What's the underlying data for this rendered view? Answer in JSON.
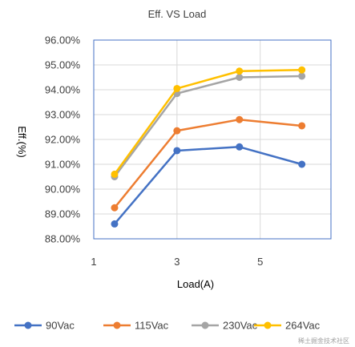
{
  "chart_data": {
    "type": "line",
    "title": "Eff. VS Load",
    "xlabel": "Load(A)",
    "ylabel": "Eff.(%)",
    "xlim": [
      1,
      6.7
    ],
    "ylim": [
      88,
      96
    ],
    "x_ticks": [
      1,
      3,
      5
    ],
    "x_tick_labels": [
      "1",
      "3",
      "5"
    ],
    "y_ticks": [
      88,
      89,
      90,
      91,
      92,
      93,
      94,
      95,
      96
    ],
    "y_tick_labels": [
      "88.00%",
      "89.00%",
      "90.00%",
      "91.00%",
      "92.00%",
      "93.00%",
      "94.00%",
      "95.00%",
      "96.00%"
    ],
    "x": [
      1.5,
      3,
      4.5,
      6
    ],
    "grid": true,
    "legend_position": "bottom",
    "series": [
      {
        "name": "90Vac",
        "color": "#4472C4",
        "values": [
          88.6,
          91.55,
          91.7,
          91.0
        ]
      },
      {
        "name": "115Vac",
        "color": "#ED7D31",
        "values": [
          89.25,
          92.35,
          92.8,
          92.55
        ]
      },
      {
        "name": "230Vac",
        "color": "#A5A5A5",
        "values": [
          90.5,
          93.85,
          94.5,
          94.55
        ]
      },
      {
        "name": "264Vac",
        "color": "#FFC000",
        "values": [
          90.6,
          94.05,
          94.75,
          94.8
        ]
      }
    ]
  },
  "watermark": "稀土掘金技术社区"
}
